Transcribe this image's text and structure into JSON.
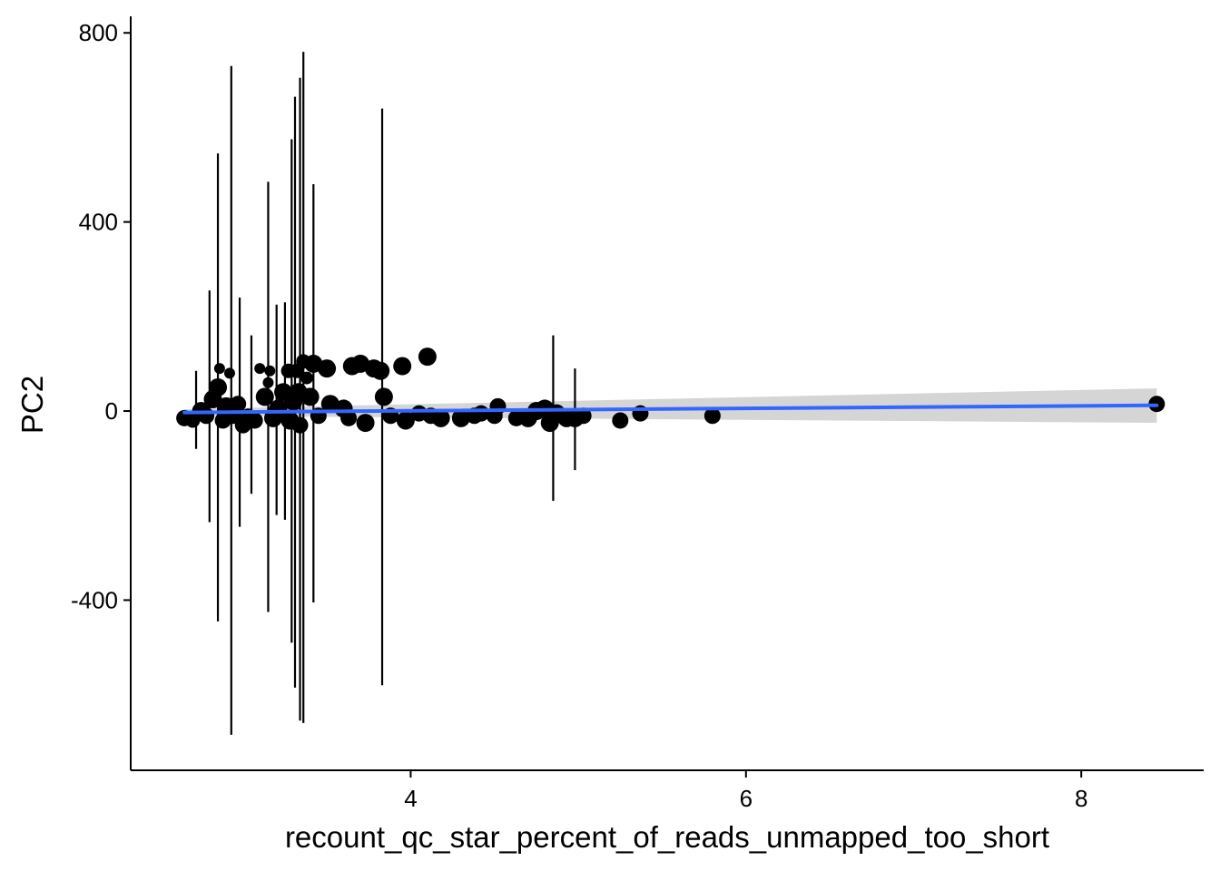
{
  "chart_data": {
    "type": "scatter",
    "xlabel": "recount_qc_star_percent_of_reads_unmapped_too_short",
    "ylabel": "PC2",
    "xlim": [
      2.33,
      8.73
    ],
    "ylim": [
      -760,
      835
    ],
    "x_ticks": [
      4,
      6,
      8
    ],
    "y_ticks": [
      -400,
      0,
      400,
      800
    ],
    "grid": false,
    "legend": "none",
    "colors": {
      "points": "#000000",
      "fit_line": "#3366FF",
      "ci_band": "#BEBEBE"
    },
    "trend_line": {
      "method": "linear",
      "x": [
        2.65,
        8.45
      ],
      "y": [
        -3,
        12
      ]
    },
    "ci_band": {
      "x": [
        2.65,
        8.45
      ],
      "lower": [
        -10,
        -25
      ],
      "upper": [
        4,
        48
      ]
    },
    "error_bars": [
      {
        "x": 2.72,
        "ymin": -80,
        "ymax": 85
      },
      {
        "x": 2.8,
        "ymin": -235,
        "ymax": 255
      },
      {
        "x": 2.85,
        "ymin": -445,
        "ymax": 545
      },
      {
        "x": 2.93,
        "ymin": -685,
        "ymax": 730
      },
      {
        "x": 2.98,
        "ymin": -245,
        "ymax": 240
      },
      {
        "x": 3.05,
        "ymin": -175,
        "ymax": 160
      },
      {
        "x": 3.15,
        "ymin": -425,
        "ymax": 485
      },
      {
        "x": 3.2,
        "ymin": -220,
        "ymax": 225
      },
      {
        "x": 3.25,
        "ymin": -230,
        "ymax": 230
      },
      {
        "x": 3.29,
        "ymin": -490,
        "ymax": 575
      },
      {
        "x": 3.31,
        "ymin": -585,
        "ymax": 665
      },
      {
        "x": 3.34,
        "ymin": -655,
        "ymax": 705
      },
      {
        "x": 3.36,
        "ymin": -660,
        "ymax": 760
      },
      {
        "x": 3.42,
        "ymin": -405,
        "ymax": 480
      },
      {
        "x": 3.83,
        "ymin": -580,
        "ymax": 640
      },
      {
        "x": 4.85,
        "ymin": -190,
        "ymax": 160
      },
      {
        "x": 4.98,
        "ymin": -125,
        "ymax": 90
      }
    ],
    "points": [
      {
        "x": 2.65,
        "y": -15,
        "size": 9
      },
      {
        "x": 2.7,
        "y": -20,
        "size": 8
      },
      {
        "x": 2.75,
        "y": 0,
        "size": 10
      },
      {
        "x": 2.78,
        "y": -10,
        "size": 9
      },
      {
        "x": 2.82,
        "y": 25,
        "size": 10
      },
      {
        "x": 2.85,
        "y": 50,
        "size": 10
      },
      {
        "x": 2.86,
        "y": 90,
        "size": 6
      },
      {
        "x": 2.88,
        "y": -20,
        "size": 9
      },
      {
        "x": 2.9,
        "y": 10,
        "size": 10
      },
      {
        "x": 2.92,
        "y": 80,
        "size": 6
      },
      {
        "x": 2.94,
        "y": -10,
        "size": 9
      },
      {
        "x": 2.97,
        "y": 15,
        "size": 9
      },
      {
        "x": 3.0,
        "y": -30,
        "size": 9
      },
      {
        "x": 3.03,
        "y": -10,
        "size": 8
      },
      {
        "x": 3.07,
        "y": -20,
        "size": 9
      },
      {
        "x": 3.1,
        "y": 90,
        "size": 6
      },
      {
        "x": 3.13,
        "y": 30,
        "size": 10
      },
      {
        "x": 3.15,
        "y": 60,
        "size": 6
      },
      {
        "x": 3.16,
        "y": 85,
        "size": 6
      },
      {
        "x": 3.18,
        "y": -15,
        "size": 10
      },
      {
        "x": 3.21,
        "y": 5,
        "size": 10
      },
      {
        "x": 3.24,
        "y": 40,
        "size": 10
      },
      {
        "x": 3.27,
        "y": 85,
        "size": 8
      },
      {
        "x": 3.28,
        "y": -20,
        "size": 10
      },
      {
        "x": 3.3,
        "y": 20,
        "size": 10
      },
      {
        "x": 3.32,
        "y": 85,
        "size": 8
      },
      {
        "x": 3.33,
        "y": 40,
        "size": 10
      },
      {
        "x": 3.34,
        "y": -30,
        "size": 9
      },
      {
        "x": 3.36,
        "y": 105,
        "size": 8
      },
      {
        "x": 3.38,
        "y": 70,
        "size": 7
      },
      {
        "x": 3.4,
        "y": 30,
        "size": 10
      },
      {
        "x": 3.42,
        "y": 100,
        "size": 10
      },
      {
        "x": 3.45,
        "y": -10,
        "size": 9
      },
      {
        "x": 3.5,
        "y": 90,
        "size": 10
      },
      {
        "x": 3.52,
        "y": 15,
        "size": 10
      },
      {
        "x": 3.6,
        "y": 5,
        "size": 10
      },
      {
        "x": 3.63,
        "y": -15,
        "size": 9
      },
      {
        "x": 3.65,
        "y": 95,
        "size": 10
      },
      {
        "x": 3.7,
        "y": 100,
        "size": 10
      },
      {
        "x": 3.73,
        "y": -25,
        "size": 10
      },
      {
        "x": 3.78,
        "y": 90,
        "size": 10
      },
      {
        "x": 3.82,
        "y": 85,
        "size": 10
      },
      {
        "x": 3.84,
        "y": 30,
        "size": 10
      },
      {
        "x": 3.88,
        "y": -10,
        "size": 9
      },
      {
        "x": 3.95,
        "y": 95,
        "size": 10
      },
      {
        "x": 3.97,
        "y": -20,
        "size": 10
      },
      {
        "x": 4.05,
        "y": -5,
        "size": 9
      },
      {
        "x": 4.1,
        "y": 115,
        "size": 10
      },
      {
        "x": 4.12,
        "y": -10,
        "size": 9
      },
      {
        "x": 4.18,
        "y": -15,
        "size": 10
      },
      {
        "x": 4.3,
        "y": -15,
        "size": 10
      },
      {
        "x": 4.38,
        "y": -10,
        "size": 9
      },
      {
        "x": 4.42,
        "y": -5,
        "size": 9
      },
      {
        "x": 4.5,
        "y": -10,
        "size": 9
      },
      {
        "x": 4.52,
        "y": 10,
        "size": 9
      },
      {
        "x": 4.63,
        "y": -15,
        "size": 9
      },
      {
        "x": 4.7,
        "y": -15,
        "size": 10
      },
      {
        "x": 4.75,
        "y": 0,
        "size": 10
      },
      {
        "x": 4.8,
        "y": 5,
        "size": 10
      },
      {
        "x": 4.83,
        "y": -25,
        "size": 10
      },
      {
        "x": 4.87,
        "y": -5,
        "size": 10
      },
      {
        "x": 4.93,
        "y": -15,
        "size": 10
      },
      {
        "x": 4.98,
        "y": -15,
        "size": 10
      },
      {
        "x": 5.03,
        "y": -10,
        "size": 9
      },
      {
        "x": 5.25,
        "y": -20,
        "size": 9
      },
      {
        "x": 5.37,
        "y": -5,
        "size": 9
      },
      {
        "x": 5.8,
        "y": -10,
        "size": 9
      },
      {
        "x": 8.45,
        "y": 15,
        "size": 9
      }
    ]
  }
}
